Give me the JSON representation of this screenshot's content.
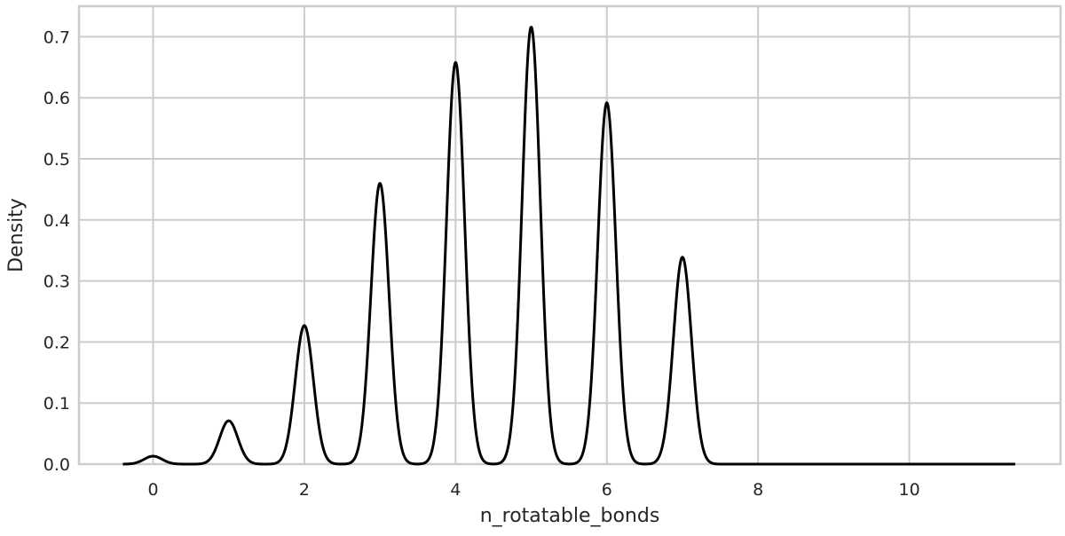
{
  "chart_data": {
    "type": "line",
    "title": "",
    "xlabel": "n_rotatable_bonds",
    "ylabel": "Density",
    "xlim": [
      -0.98,
      12.0
    ],
    "ylim": [
      0.0,
      0.75
    ],
    "xticks": [
      0,
      2,
      4,
      6,
      8,
      10
    ],
    "yticks": [
      0.0,
      0.1,
      0.2,
      0.3,
      0.4,
      0.5,
      0.6,
      0.7
    ],
    "xtick_labels": [
      "0",
      "2",
      "4",
      "6",
      "8",
      "10"
    ],
    "ytick_labels": [
      "0.0",
      "0.1",
      "0.2",
      "0.3",
      "0.4",
      "0.5",
      "0.6",
      "0.7"
    ],
    "grid": true,
    "x_range": [
      -0.4,
      11.4
    ],
    "line_color": "#000000",
    "grid_color": "#cccccc",
    "series": [
      {
        "peaks": [
          {
            "x": 0,
            "y": 0.013
          },
          {
            "x": 1,
            "y": 0.071
          },
          {
            "x": 2,
            "y": 0.227
          },
          {
            "x": 3,
            "y": 0.46
          },
          {
            "x": 4,
            "y": 0.658
          },
          {
            "x": 5,
            "y": 0.716
          },
          {
            "x": 6,
            "y": 0.592
          },
          {
            "x": 7,
            "y": 0.339
          }
        ],
        "bandwidth": 0.12
      }
    ]
  }
}
